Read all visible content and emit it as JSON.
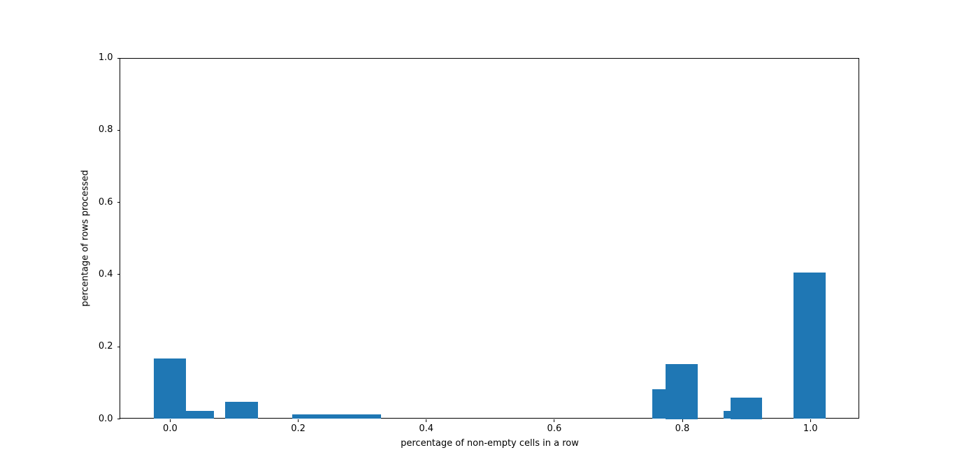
{
  "figure": {
    "background": "#ffffff"
  },
  "chart_data": {
    "type": "bar",
    "subtype": "histogram",
    "title": "",
    "xlabel": "percentage of non-empty cells in a row",
    "ylabel": "percentage of rows processed",
    "xlim": [
      -0.0785,
      1.0762
    ],
    "ylim": [
      0,
      1.0
    ],
    "grid": false,
    "legend": null,
    "bar_color": "#1f77b4",
    "axis_color": "#000000",
    "x_ticks": [
      0.0,
      0.2,
      0.4,
      0.6,
      0.8,
      1.0
    ],
    "x_tick_labels": [
      "0.0",
      "0.2",
      "0.4",
      "0.6",
      "0.8",
      "1.0"
    ],
    "y_ticks": [
      0.0,
      0.2,
      0.4,
      0.6,
      0.8,
      1.0
    ],
    "y_tick_labels": [
      "0.0",
      "0.2",
      "0.4",
      "0.6",
      "0.8",
      "1.0"
    ],
    "bars": [
      {
        "x_left": -0.026,
        "x_right": 0.025,
        "height": 0.167
      },
      {
        "x_left": 0.025,
        "x_right": 0.068,
        "height": 0.022
      },
      {
        "x_left": 0.086,
        "x_right": 0.137,
        "height": 0.047
      },
      {
        "x_left": 0.191,
        "x_right": 0.329,
        "height": 0.012
      },
      {
        "x_left": 0.753,
        "x_right": 0.774,
        "height": 0.082
      },
      {
        "x_left": 0.774,
        "x_right": 0.824,
        "height": 0.153
      },
      {
        "x_left": 0.864,
        "x_right": 0.875,
        "height": 0.022
      },
      {
        "x_left": 0.875,
        "x_right": 0.924,
        "height": 0.059
      },
      {
        "x_left": 0.974,
        "x_right": 1.024,
        "height": 0.406
      }
    ]
  }
}
